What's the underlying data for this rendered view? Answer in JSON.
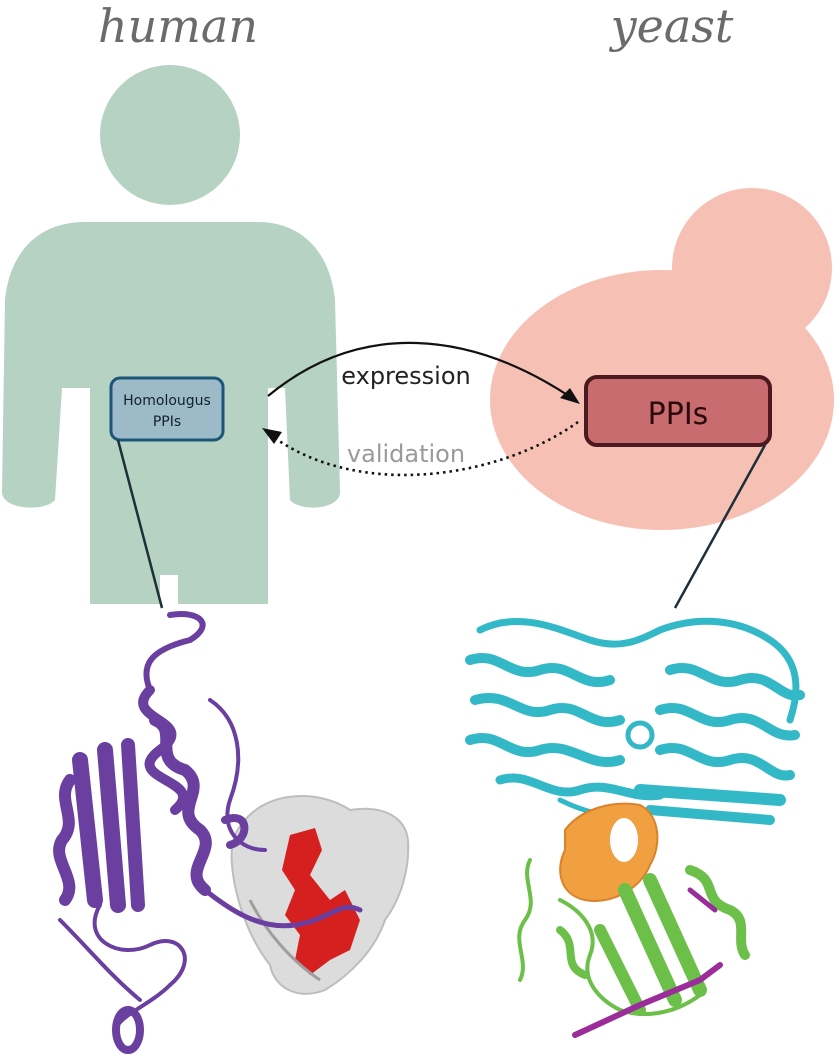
{
  "titles": {
    "human": "human",
    "yeast": "yeast"
  },
  "boxes": {
    "human_line1": "Homolougus",
    "human_line2": "PPIs",
    "yeast": "PPIs"
  },
  "arrows": {
    "expression": "expression",
    "validation": "validation"
  },
  "colors": {
    "human_body": "#b5d2c2",
    "yeast_cell": "#f6c1b4",
    "human_box_fill": "#9dbac8",
    "human_box_stroke": "#1d5577",
    "yeast_box_fill": "#c96c70",
    "yeast_box_stroke": "#4a1a1e",
    "title_text": "#6b6b6b",
    "human_protein": "#6a3fa0",
    "human_surface": "#dcdcdc",
    "human_interface": "#d62020",
    "yeast_protein_top": "#33b8c8",
    "yeast_protein_bottom": "#6cc04a",
    "yeast_interface": "#f0a040",
    "yeast_strand": "#9b2d9b"
  }
}
